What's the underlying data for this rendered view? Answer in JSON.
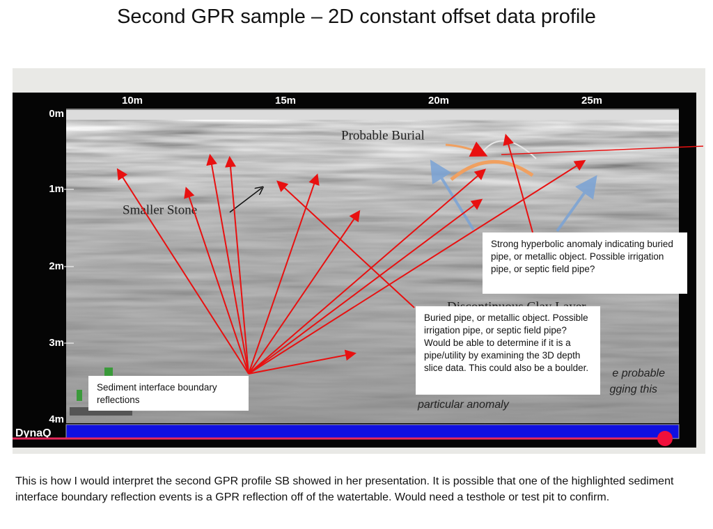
{
  "title": "Second GPR sample – 2D constant offset data profile",
  "profile": {
    "distance_labels": [
      "10m",
      "15m",
      "20m",
      "25m"
    ],
    "depth_labels": [
      "0m",
      "1m",
      "2m",
      "3m",
      "4m"
    ],
    "brand": "DynaQ",
    "annotations": {
      "probable_burial": "Probable Burial",
      "smaller_stone": "Smaller Stone",
      "clay_layer": "Discontinuous Clay Layer",
      "italic_note": [
        "e probable",
        "gging this",
        "particular anomaly"
      ]
    }
  },
  "callouts": [
    "Strong hyperbolic anomaly indicating buried pipe, or metallic object. Possible irrigation pipe, or septic field pipe?",
    "Buried pipe, or metallic object. Possible irrigation pipe, or septic field pipe?  Would be able to determine if it is a pipe/utility by examining the 3D depth slice data. This could also be a boulder.",
    "Sediment interface boundary reflections"
  ],
  "caption": "This is how I would interpret the second GPR profile SB showed in her presentation.  It is possible that one of the highlighted sediment interface boundary reflection events is a GPR reflection off of the watertable.  Would need a testhole or test pit to confirm."
}
